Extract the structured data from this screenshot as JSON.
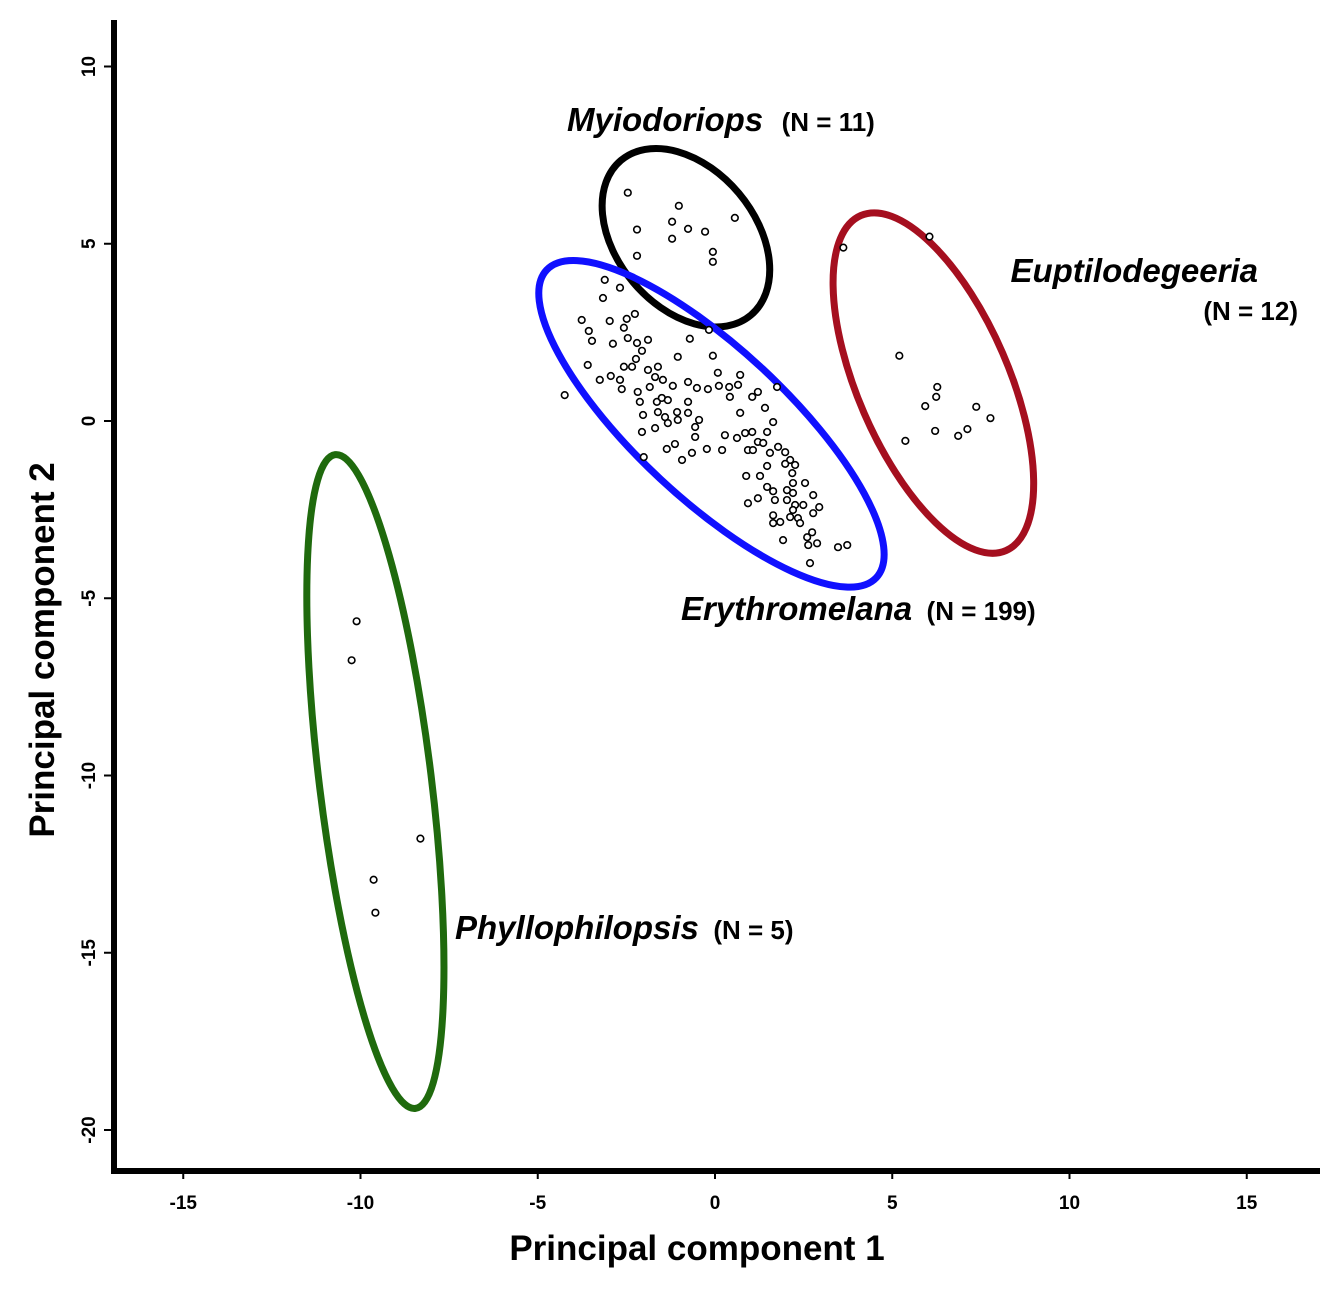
{
  "chart_data": {
    "type": "scatter",
    "title": "",
    "xlabel": "Principal component 1",
    "ylabel": "Principal component 2",
    "xlim": [
      -16.9,
      17.1
    ],
    "ylim": [
      -21.2,
      11.3
    ],
    "grid": false,
    "x_ticks": [
      -15,
      -10,
      -5,
      0,
      5,
      10,
      15
    ],
    "x_tick_labels": [
      "-15",
      "-10",
      "-5",
      "0",
      "5",
      "10",
      "15"
    ],
    "y_ticks": [
      10,
      5,
      0,
      -5,
      -10,
      -15,
      -20
    ],
    "y_tick_labels": [
      "10",
      "5",
      "0",
      "-5",
      "-10",
      "-15",
      "-20"
    ],
    "series": [
      {
        "name": "Myiodoriops",
        "n_label": "(N = 11)",
        "color": "#000000",
        "ellipse": {
          "cx": -0.82,
          "cy": 5.17,
          "rx": 2.85,
          "ry": 1.95,
          "angle_deg": -50
        },
        "points": [
          [
            -2.46,
            6.44
          ],
          [
            -1.02,
            6.07
          ],
          [
            -1.21,
            5.62
          ],
          [
            -1.21,
            5.14
          ],
          [
            -0.76,
            5.42
          ],
          [
            -0.28,
            5.34
          ],
          [
            0.56,
            5.73
          ],
          [
            -0.06,
            4.77
          ],
          [
            -0.06,
            4.49
          ],
          [
            -2.2,
            5.4
          ],
          [
            -2.2,
            4.66
          ]
        ]
      },
      {
        "name": "Euptilodegeeria",
        "n_label": "(N = 12)",
        "color": "#a50f1f",
        "ellipse": {
          "cx": 6.16,
          "cy": 1.07,
          "rx": 5.15,
          "ry": 2.13,
          "angle_deg": -66.6
        },
        "points": [
          [
            6.05,
            5.2
          ],
          [
            3.62,
            4.89
          ],
          [
            5.2,
            1.84
          ],
          [
            6.27,
            0.96
          ],
          [
            6.24,
            0.68
          ],
          [
            5.93,
            0.42
          ],
          [
            7.37,
            0.4
          ],
          [
            7.77,
            0.08
          ],
          [
            6.21,
            -0.28
          ],
          [
            6.86,
            -0.42
          ],
          [
            7.12,
            -0.23
          ],
          [
            5.37,
            -0.56
          ]
        ]
      },
      {
        "name": "Erythromelana",
        "n_label": "(N = 199)",
        "color": "#1010ff",
        "ellipse": {
          "cx": -0.1,
          "cy": -0.08,
          "rx": 6.36,
          "ry": 2.12,
          "angle_deg": -43
        },
        "points": [
          [
            -4.24,
            0.73
          ],
          [
            -3.76,
            2.85
          ],
          [
            -3.56,
            2.54
          ],
          [
            -3.47,
            2.26
          ],
          [
            -3.59,
            1.58
          ],
          [
            -3.25,
            1.16
          ],
          [
            -3.16,
            3.47
          ],
          [
            -2.97,
            2.82
          ],
          [
            -2.88,
            2.18
          ],
          [
            -2.94,
            1.27
          ],
          [
            -2.68,
            1.16
          ],
          [
            -2.63,
            0.9
          ],
          [
            -2.57,
            1.53
          ],
          [
            -2.49,
            2.88
          ],
          [
            -2.26,
            3.02
          ],
          [
            -2.57,
            2.63
          ],
          [
            -2.46,
            2.34
          ],
          [
            -2.2,
            2.2
          ],
          [
            -1.89,
            2.29
          ],
          [
            -2.23,
            1.75
          ],
          [
            -2.06,
            1.98
          ],
          [
            -2.34,
            1.53
          ],
          [
            -1.89,
            1.44
          ],
          [
            -1.61,
            1.53
          ],
          [
            -1.69,
            1.24
          ],
          [
            -1.47,
            1.16
          ],
          [
            -1.84,
            0.96
          ],
          [
            -2.18,
            0.82
          ],
          [
            -2.12,
            0.54
          ],
          [
            -2.03,
            0.17
          ],
          [
            -1.64,
            0.54
          ],
          [
            -1.5,
            0.65
          ],
          [
            -1.33,
            0.59
          ],
          [
            -1.61,
            0.25
          ],
          [
            -1.41,
            0.11
          ],
          [
            -1.33,
            -0.06
          ],
          [
            -1.69,
            -0.2
          ],
          [
            -2.06,
            -0.31
          ],
          [
            -1.19,
            0.99
          ],
          [
            -1.05,
            1.81
          ],
          [
            -0.76,
            1.1
          ],
          [
            -0.51,
            0.93
          ],
          [
            -0.71,
            2.32
          ],
          [
            -0.76,
            0.54
          ],
          [
            -1.07,
            0.25
          ],
          [
            -1.05,
            0.03
          ],
          [
            -0.76,
            0.23
          ],
          [
            -0.56,
            -0.17
          ],
          [
            -0.45,
            0.03
          ],
          [
            -0.56,
            -0.45
          ],
          [
            -1.13,
            -0.65
          ],
          [
            -1.36,
            -0.79
          ],
          [
            -0.93,
            -1.1
          ],
          [
            -0.65,
            -0.9
          ],
          [
            -0.23,
            -0.79
          ],
          [
            -0.2,
            0.9
          ],
          [
            -0.06,
            1.84
          ],
          [
            0.08,
            1.36
          ],
          [
            0.11,
            0.99
          ],
          [
            0.4,
            0.96
          ],
          [
            0.65,
            1.02
          ],
          [
            0.71,
            1.3
          ],
          [
            0.42,
            0.68
          ],
          [
            0.2,
            -0.82
          ],
          [
            0.28,
            -0.4
          ],
          [
            0.62,
            -0.48
          ],
          [
            0.71,
            0.23
          ],
          [
            0.85,
            -0.34
          ],
          [
            1.05,
            -0.31
          ],
          [
            0.93,
            -0.82
          ],
          [
            1.07,
            -0.82
          ],
          [
            1.05,
            0.68
          ],
          [
            1.21,
            0.82
          ],
          [
            1.41,
            0.37
          ],
          [
            1.47,
            -0.31
          ],
          [
            1.64,
            -0.03
          ],
          [
            1.75,
            0.96
          ],
          [
            1.21,
            -0.59
          ],
          [
            1.36,
            -0.62
          ],
          [
            1.55,
            -0.9
          ],
          [
            1.47,
            -1.27
          ],
          [
            1.27,
            -1.55
          ],
          [
            0.88,
            -1.55
          ],
          [
            1.98,
            -0.88
          ],
          [
            2.12,
            -1.1
          ],
          [
            2.26,
            -1.24
          ],
          [
            2.18,
            -1.47
          ],
          [
            2.2,
            -1.75
          ],
          [
            2.03,
            -1.95
          ],
          [
            1.64,
            -1.98
          ],
          [
            1.69,
            -2.23
          ],
          [
            0.93,
            -2.32
          ],
          [
            1.21,
            -2.18
          ],
          [
            2.03,
            -2.23
          ],
          [
            2.26,
            -2.37
          ],
          [
            2.49,
            -2.37
          ],
          [
            2.54,
            -1.75
          ],
          [
            2.77,
            -2.09
          ],
          [
            2.94,
            -2.43
          ],
          [
            1.64,
            -2.66
          ],
          [
            1.84,
            -2.85
          ],
          [
            2.12,
            -2.71
          ],
          [
            2.34,
            -2.74
          ],
          [
            2.2,
            -2.51
          ],
          [
            2.77,
            -2.6
          ],
          [
            1.92,
            -3.36
          ],
          [
            2.6,
            -3.28
          ],
          [
            2.74,
            -3.14
          ],
          [
            2.88,
            -3.45
          ],
          [
            2.63,
            -3.5
          ],
          [
            2.68,
            -4.01
          ],
          [
            3.47,
            -3.56
          ],
          [
            3.73,
            -3.5
          ],
          [
            2.2,
            -2.03
          ],
          [
            2.4,
            -2.88
          ],
          [
            1.64,
            -2.88
          ],
          [
            -3.11,
            3.98
          ],
          [
            -2.68,
            3.76
          ],
          [
            -0.17,
            2.57
          ],
          [
            -2.01,
            -1.02
          ],
          [
            1.78,
            -0.73
          ],
          [
            1.98,
            -1.21
          ],
          [
            1.47,
            -1.86
          ]
        ]
      },
      {
        "name": "Phyllophilopsis",
        "n_label": "(N = 5)",
        "color": "#1f6a0d",
        "ellipse": {
          "cx": -9.58,
          "cy": -10.17,
          "rx": 9.29,
          "ry": 1.58,
          "angle_deg": 97
        },
        "points": [
          [
            -10.11,
            -5.65
          ],
          [
            -10.25,
            -6.75
          ],
          [
            -8.31,
            -11.78
          ],
          [
            -9.63,
            -12.94
          ],
          [
            -9.58,
            -13.87
          ]
        ]
      }
    ]
  }
}
